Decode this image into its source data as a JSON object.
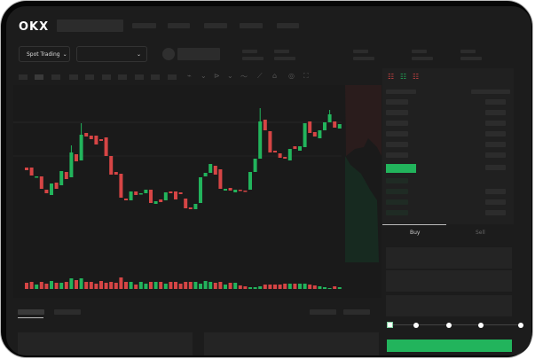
{
  "header": {
    "logo": "OKX",
    "nav_count": 5
  },
  "toolbar": {
    "market_dropdown": "Spot Trading",
    "pair_dropdown": ""
  },
  "orderbook": {
    "view_icons": [
      "orderbook-both-icon",
      "orderbook-buy-icon",
      "orderbook-sell-icon"
    ]
  },
  "trade_form": {
    "buy_tab": "Buy",
    "sell_tab": "Sell",
    "slider_level_percent": 0
  },
  "colors": {
    "up": "#22b45c",
    "down": "#d64545",
    "accent": "#22b45c"
  },
  "chart_data": {
    "type": "candlestick",
    "candles": [
      [
        68,
        65,
        68,
        65
      ],
      [
        68,
        59,
        68,
        59
      ],
      [
        57,
        58,
        58,
        57
      ],
      [
        58,
        44,
        58,
        44
      ],
      [
        43,
        39,
        43,
        39
      ],
      [
        37,
        50,
        38,
        50
      ],
      [
        51,
        44,
        51,
        44
      ],
      [
        48,
        64,
        48,
        64
      ],
      [
        63,
        55,
        63,
        55
      ],
      [
        57,
        85,
        93,
        57
      ],
      [
        83,
        75,
        83,
        75
      ],
      [
        76,
        105,
        118,
        76
      ],
      [
        107,
        103,
        107,
        103
      ],
      [
        104,
        100,
        104,
        100
      ],
      [
        104,
        94,
        104,
        94
      ],
      [
        100,
        98,
        100,
        98
      ],
      [
        102,
        81,
        102,
        81
      ],
      [
        81,
        60,
        81,
        60
      ],
      [
        63,
        60,
        63,
        60
      ],
      [
        61,
        34,
        61,
        34
      ],
      [
        33,
        31,
        33,
        31
      ],
      [
        31,
        41,
        41,
        31
      ],
      [
        41,
        37,
        41,
        37
      ],
      [
        38,
        39,
        39,
        38
      ],
      [
        39,
        43,
        43,
        39
      ],
      [
        43,
        28,
        43,
        28
      ],
      [
        27,
        30,
        30,
        27
      ],
      [
        32,
        29,
        32,
        29
      ],
      [
        31,
        40,
        40,
        31
      ],
      [
        41,
        39,
        41,
        39
      ],
      [
        41,
        32,
        41,
        32
      ],
      [
        40,
        38,
        40,
        38
      ],
      [
        33,
        22,
        33,
        22
      ],
      [
        23,
        21,
        23,
        21
      ],
      [
        21,
        27,
        27,
        21
      ],
      [
        28,
        57,
        57,
        28
      ],
      [
        58,
        62,
        62,
        58
      ],
      [
        62,
        72,
        72,
        62
      ],
      [
        70,
        60,
        70,
        60
      ],
      [
        66,
        44,
        66,
        44
      ],
      [
        42,
        44,
        44,
        42
      ],
      [
        45,
        42,
        45,
        42
      ],
      [
        40,
        43,
        43,
        40
      ],
      [
        43,
        42,
        43,
        42
      ],
      [
        42,
        41,
        42,
        41
      ],
      [
        43,
        63,
        63,
        43
      ],
      [
        63,
        78,
        78,
        63
      ],
      [
        78,
        120,
        135,
        78
      ],
      [
        122,
        110,
        122,
        110
      ],
      [
        109,
        85,
        109,
        85
      ],
      [
        87,
        85,
        87,
        85
      ],
      [
        84,
        79,
        84,
        79
      ],
      [
        80,
        78,
        80,
        78
      ],
      [
        76,
        89,
        89,
        76
      ],
      [
        92,
        89,
        92,
        89
      ],
      [
        87,
        92,
        92,
        87
      ],
      [
        91,
        118,
        118,
        91
      ],
      [
        120,
        107,
        120,
        107
      ],
      [
        108,
        103,
        108,
        103
      ],
      [
        101,
        110,
        110,
        101
      ],
      [
        110,
        119,
        119,
        110
      ],
      [
        119,
        128,
        133,
        119
      ],
      [
        120,
        113,
        120,
        113
      ],
      [
        112,
        117,
        117,
        112
      ]
    ],
    "volume": [
      7,
      8,
      5,
      8,
      6,
      9,
      7,
      7,
      8,
      12,
      10,
      12,
      8,
      8,
      6,
      9,
      7,
      8,
      7,
      13,
      8,
      8,
      5,
      8,
      6,
      8,
      8,
      8,
      6,
      8,
      8,
      6,
      8,
      8,
      8,
      6,
      9,
      8,
      7,
      8,
      5,
      7,
      7,
      4,
      3,
      2,
      2,
      3,
      5,
      5,
      5,
      5,
      6,
      6,
      6,
      6,
      6,
      5,
      4,
      3,
      2,
      1,
      3,
      2
    ]
  }
}
